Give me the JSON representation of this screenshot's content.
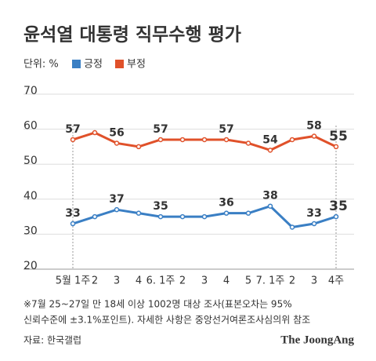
{
  "chart_data": {
    "type": "line",
    "title": "윤석열 대통령 직무수행 평가",
    "unit": "단위: %",
    "categories": [
      "5월 1주",
      "2",
      "3",
      "4",
      "6. 1주",
      "2",
      "3",
      "4",
      "5",
      "7. 1주",
      "2",
      "3",
      "4주"
    ],
    "series": [
      {
        "name": "긍정",
        "color": "#3a7fc4",
        "values": [
          33,
          35,
          37,
          36,
          35,
          35,
          35,
          36,
          36,
          38,
          32,
          33,
          35
        ],
        "value_labels": [
          "33",
          null,
          "37",
          null,
          "35",
          null,
          null,
          "36",
          null,
          "38",
          null,
          "33",
          "35"
        ]
      },
      {
        "name": "부정",
        "color": "#e0512a",
        "values": [
          57,
          59,
          56,
          55,
          57,
          57,
          57,
          57,
          56,
          54,
          57,
          58,
          55
        ],
        "value_labels": [
          "57",
          null,
          "56",
          null,
          "57",
          null,
          null,
          "57",
          null,
          "54",
          null,
          "58",
          "55"
        ]
      }
    ],
    "ylim": [
      20,
      70
    ],
    "yticks": [
      20,
      30,
      40,
      50,
      60,
      70
    ],
    "grid": true,
    "notes": [
      "※7월 25~27일 만 18세 이상 1002명 대상 조사(표본오차는 95%",
      "신뢰수준에 ±3.1%포인트). 자세한 사항은 중앙선거여론조사심의위 참조"
    ],
    "source": "자료: 한국갤럽",
    "brand": "The JoongAng"
  }
}
